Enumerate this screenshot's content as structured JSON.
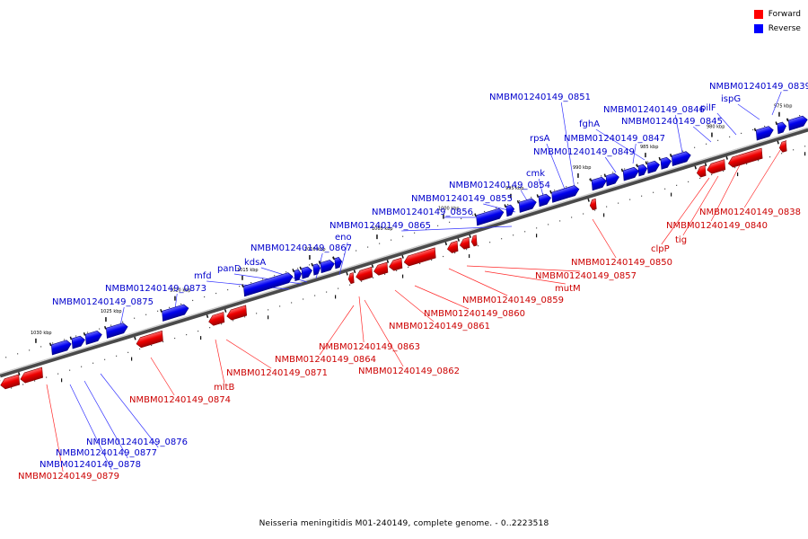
{
  "caption": "Neisseria meningitidis M01-240149, complete genome. - 0..2223518",
  "legend": [
    {
      "label": "Forward",
      "color": "#ff0000"
    },
    {
      "label": "Reverse",
      "color": "#0000ff"
    }
  ],
  "colors": {
    "forward": "#ff0000",
    "reverse": "#0000ff",
    "forward_label": "#cc0000",
    "reverse_label": "#0000cc",
    "backbone": "#888888"
  },
  "ticks": [
    "975 kbp",
    "980 kbp",
    "985 kbp",
    "990 kbp",
    "995 kbp",
    "1000 kbp",
    "1005 kbp",
    "1010 kbp",
    "1015 kbp",
    "1020 kbp",
    "1025 kbp",
    "1030 kbp"
  ],
  "reverse_labels": [
    "NMBM01240149_0839",
    "ispG",
    "pilF",
    "NMBM01240149_0845",
    "NMBM01240149_0846",
    "fghA",
    "NMBM01240149_0847",
    "NMBM01240149_0849",
    "NMBM01240149_0851",
    "rpsA",
    "cmk",
    "NMBM01240149_0854",
    "NMBM01240149_0855",
    "NMBM01240149_0856",
    "NMBM01240149_0865",
    "eno",
    "NMBM01240149_0867",
    "kdsA",
    "panD",
    "mfd",
    "NMBM01240149_0873",
    "NMBM01240149_0875",
    "NMBM01240149_0876",
    "NMBM01240149_0877",
    "NMBM01240149_0878"
  ],
  "forward_labels": [
    "NMBM01240149_0838",
    "NMBM01240149_0840",
    "tig",
    "clpP",
    "NMBM01240149_0850",
    "NMBM01240149_0857",
    "mutM",
    "NMBM01240149_0859",
    "NMBM01240149_0860",
    "NMBM01240149_0861",
    "NMBM01240149_0863",
    "NMBM01240149_0864",
    "NMBM01240149_0862",
    "NMBM01240149_0871",
    "mltB",
    "NMBM01240149_0874",
    "NMBM01240149_0879"
  ]
}
